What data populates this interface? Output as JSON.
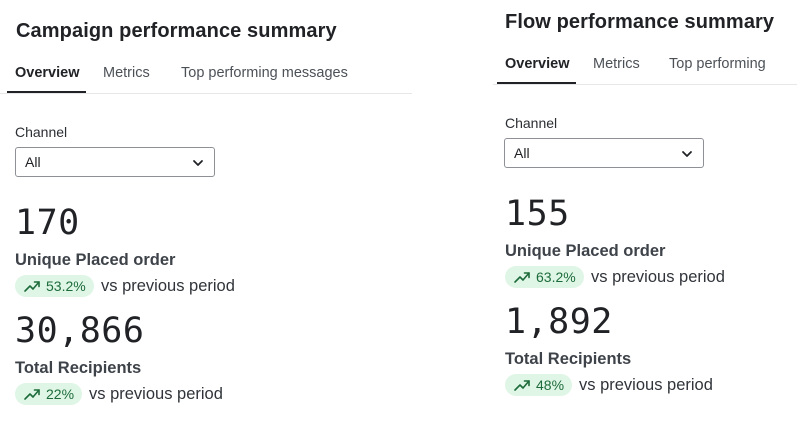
{
  "campaign": {
    "title": "Campaign performance summary",
    "tabs": [
      "Overview",
      "Metrics",
      "Top performing messages"
    ],
    "channel_label": "Channel",
    "channel_value": "All",
    "metrics": [
      {
        "value": "170",
        "name": "Unique Placed order",
        "change": "53.2%",
        "comparison": "vs previous period"
      },
      {
        "value": "30,866",
        "name": "Total Recipients",
        "change": "22%",
        "comparison": "vs previous period"
      }
    ]
  },
  "flow": {
    "title": "Flow performance summary",
    "tabs": [
      "Overview",
      "Metrics",
      "Top performing"
    ],
    "channel_label": "Channel",
    "channel_value": "All",
    "metrics": [
      {
        "value": "155",
        "name": "Unique Placed order",
        "change": "63.2%",
        "comparison": "vs previous period"
      },
      {
        "value": "1,892",
        "name": "Total Recipients",
        "change": "48%",
        "comparison": "vs previous period"
      }
    ]
  },
  "colors": {
    "pill_bg": "#dff6e6",
    "pill_text": "#1d6b3a",
    "tab_active": "#202226"
  },
  "icons": {
    "trend": "trend-up-icon",
    "dropdown": "chevron-down-icon"
  }
}
